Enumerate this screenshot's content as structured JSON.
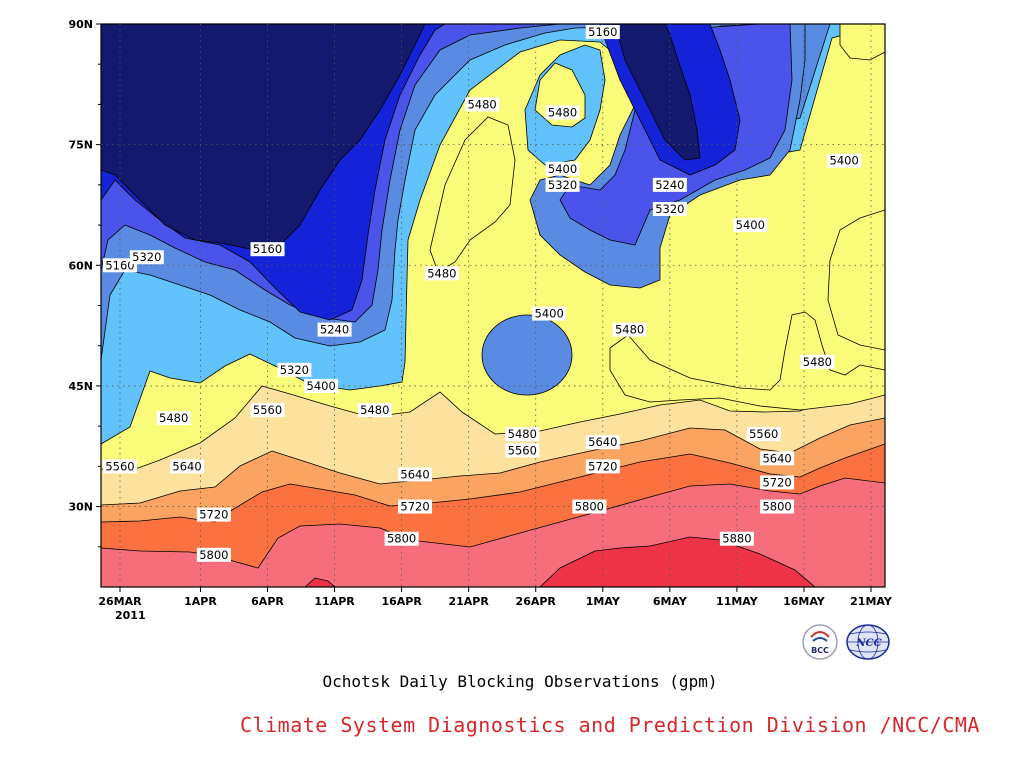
{
  "chart_data": {
    "type": "heatmap",
    "subtype": "filled-contour",
    "title": "Ochotsk Daily Blocking Observations (gpm)",
    "credit": "Climate System Diagnostics and Prediction Division /NCC/CMA",
    "x_tick_labels": [
      "26MAR",
      "1APR",
      "6APR",
      "11APR",
      "16APR",
      "21APR",
      "26APR",
      "1MAY",
      "6MAY",
      "11MAY",
      "16MAY",
      "21MAY"
    ],
    "x_year_label": "2011",
    "x_range": [
      "2011-03-26",
      "2011-05-21"
    ],
    "y_tick_labels": [
      "90N",
      "75N",
      "60N",
      "45N",
      "30N"
    ],
    "y_range_deg": [
      20,
      90
    ],
    "grid": "dotted",
    "contour_levels": [
      5160,
      5240,
      5320,
      5400,
      5480,
      5560,
      5640,
      5720,
      5800,
      5880
    ],
    "band_colors": {
      "lt5160": "#131a6e",
      "5160-5240": "#1422d8",
      "5240-5320": "#4a54ea",
      "5320-5400": "#5a8be3",
      "5400-5480": "#62c2fb",
      "5480-5560": "#fbfb7a",
      "5560-5640": "#fce29c",
      "5640-5720": "#fba461",
      "5720-5800": "#fb7240",
      "5800-5880": "#f66e7c",
      "gt5880": "#ee3346"
    },
    "contour_labels": [
      {
        "value": "5160",
        "date": "2011-03-26",
        "lat": 60
      },
      {
        "value": "5160",
        "date": "2011-04-06",
        "lat": 62
      },
      {
        "value": "5160",
        "date": "2011-05-01",
        "lat": 89
      },
      {
        "value": "5240",
        "date": "2011-04-11",
        "lat": 52
      },
      {
        "value": "5240",
        "date": "2011-05-06",
        "lat": 70
      },
      {
        "value": "5320",
        "date": "2011-03-28",
        "lat": 61
      },
      {
        "value": "5320",
        "date": "2011-04-08",
        "lat": 47
      },
      {
        "value": "5320",
        "date": "2011-04-28",
        "lat": 70
      },
      {
        "value": "5320",
        "date": "2011-05-06",
        "lat": 67
      },
      {
        "value": "5400",
        "date": "2011-04-10",
        "lat": 45
      },
      {
        "value": "5400",
        "date": "2011-04-27",
        "lat": 54
      },
      {
        "value": "5400",
        "date": "2011-04-28",
        "lat": 72
      },
      {
        "value": "5400",
        "date": "2011-05-12",
        "lat": 65
      },
      {
        "value": "5400",
        "date": "2011-05-19",
        "lat": 73
      },
      {
        "value": "5480",
        "date": "2011-03-30",
        "lat": 41
      },
      {
        "value": "5480",
        "date": "2011-04-14",
        "lat": 42
      },
      {
        "value": "5480",
        "date": "2011-04-19",
        "lat": 59
      },
      {
        "value": "5480",
        "date": "2011-04-22",
        "lat": 80
      },
      {
        "value": "5480",
        "date": "2011-04-25",
        "lat": 39
      },
      {
        "value": "5480",
        "date": "2011-04-28",
        "lat": 79
      },
      {
        "value": "5480",
        "date": "2011-05-03",
        "lat": 52
      },
      {
        "value": "5480",
        "date": "2011-05-17",
        "lat": 48
      },
      {
        "value": "5560",
        "date": "2011-03-26",
        "lat": 35
      },
      {
        "value": "5560",
        "date": "2011-04-06",
        "lat": 42
      },
      {
        "value": "5560",
        "date": "2011-04-25",
        "lat": 37
      },
      {
        "value": "5560",
        "date": "2011-05-13",
        "lat": 39
      },
      {
        "value": "5640",
        "date": "2011-03-31",
        "lat": 35
      },
      {
        "value": "5640",
        "date": "2011-04-17",
        "lat": 34
      },
      {
        "value": "5640",
        "date": "2011-05-01",
        "lat": 38
      },
      {
        "value": "5640",
        "date": "2011-05-14",
        "lat": 36
      },
      {
        "value": "5720",
        "date": "2011-04-02",
        "lat": 29
      },
      {
        "value": "5720",
        "date": "2011-04-17",
        "lat": 30
      },
      {
        "value": "5720",
        "date": "2011-05-01",
        "lat": 35
      },
      {
        "value": "5720",
        "date": "2011-05-14",
        "lat": 33
      },
      {
        "value": "5800",
        "date": "2011-04-02",
        "lat": 24
      },
      {
        "value": "5800",
        "date": "2011-04-16",
        "lat": 26
      },
      {
        "value": "5800",
        "date": "2011-04-30",
        "lat": 30
      },
      {
        "value": "5800",
        "date": "2011-05-14",
        "lat": 30
      },
      {
        "value": "5880",
        "date": "2011-05-11",
        "lat": 26
      }
    ]
  },
  "logos": {
    "left": {
      "text": "BCC",
      "icon": "bcc-logo"
    },
    "right": {
      "text": "NCC",
      "icon": "ncc-globe-logo"
    }
  }
}
